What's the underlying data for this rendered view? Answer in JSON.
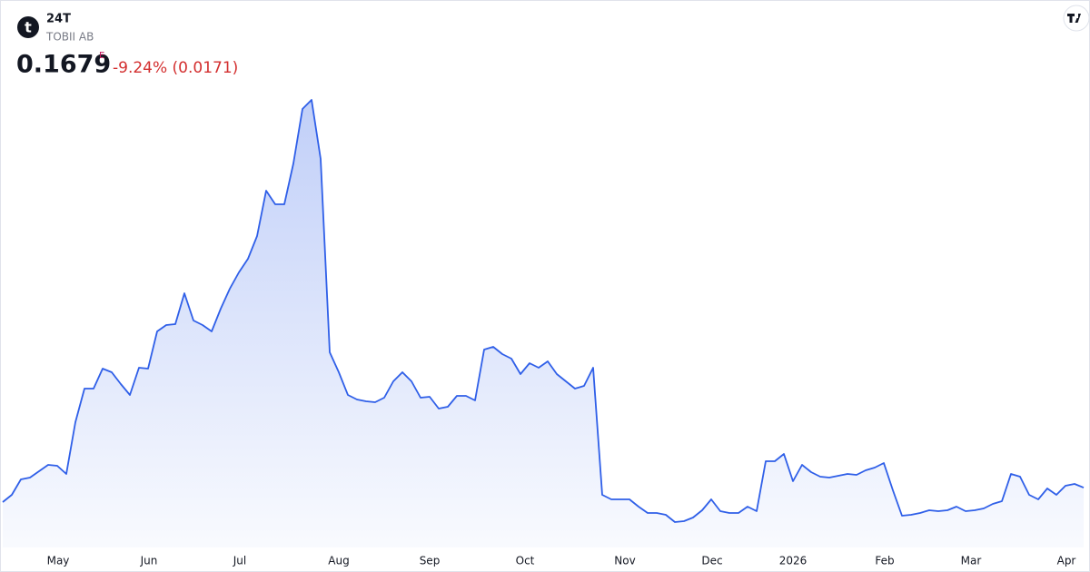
{
  "header": {
    "logo": "t",
    "symbol": "24T",
    "name": "TOBII AB",
    "price": 0.1679,
    "flag": "E",
    "change": "-9.24% (0.0171)"
  },
  "chart_data": {
    "type": "area",
    "color": "#2f5fe8",
    "values": [
      0.152,
      0.16,
      0.177,
      0.179,
      0.186,
      0.193,
      0.192,
      0.183,
      0.24,
      0.277,
      0.277,
      0.299,
      0.295,
      0.282,
      0.27,
      0.3,
      0.299,
      0.34,
      0.347,
      0.348,
      0.382,
      0.352,
      0.347,
      0.34,
      0.365,
      0.387,
      0.405,
      0.42,
      0.445,
      0.495,
      0.48,
      0.48,
      0.525,
      0.585,
      0.595,
      0.53,
      0.317,
      0.295,
      0.27,
      0.265,
      0.263,
      0.262,
      0.267,
      0.285,
      0.295,
      0.285,
      0.267,
      0.268,
      0.255,
      0.257,
      0.269,
      0.269,
      0.264,
      0.32,
      0.323,
      0.315,
      0.31,
      0.293,
      0.305,
      0.3,
      0.307,
      0.293,
      0.285,
      0.277,
      0.28,
      0.3,
      0.16,
      0.155,
      0.155,
      0.155,
      0.147,
      0.14,
      0.14,
      0.138,
      0.13,
      0.131,
      0.135,
      0.143,
      0.155,
      0.142,
      0.14,
      0.14,
      0.147,
      0.142,
      0.197,
      0.197,
      0.205,
      0.175,
      0.193,
      0.185,
      0.18,
      0.179,
      0.181,
      0.183,
      0.182,
      0.187,
      0.19,
      0.195,
      0.165,
      0.137,
      0.138,
      0.14,
      0.143,
      0.142,
      0.143,
      0.147,
      0.142,
      0.143,
      0.145,
      0.15,
      0.153,
      0.183,
      0.18,
      0.16,
      0.155,
      0.167,
      0.16,
      0.17,
      0.172,
      0.1679
    ],
    "ylim": [
      0.075,
      0.705
    ],
    "xticks": [
      {
        "value": 6.1,
        "label": "May"
      },
      {
        "value": 16.1,
        "label": "Jun"
      },
      {
        "value": 26.1,
        "label": "Jul"
      },
      {
        "value": 37,
        "label": "Aug"
      },
      {
        "value": 47,
        "label": "Sep"
      },
      {
        "value": 57.5,
        "label": "Oct"
      },
      {
        "value": 68.5,
        "label": "Nov"
      },
      {
        "value": 78.1,
        "label": "Dec"
      },
      {
        "value": 87,
        "label": "2026"
      },
      {
        "value": 97.1,
        "label": "Feb"
      },
      {
        "value": 106.6,
        "label": "Mar"
      },
      {
        "value": 117.1,
        "label": "Apr"
      }
    ]
  }
}
